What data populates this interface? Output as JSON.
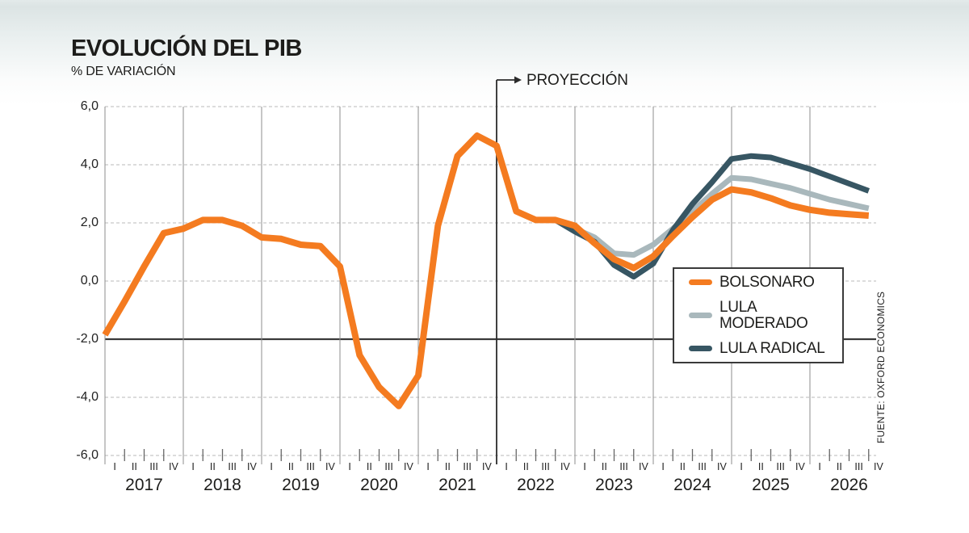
{
  "header": {
    "title": "EVOLUCIÓN DEL PIB",
    "subtitle": "% DE VARIACIÓN"
  },
  "source": "FUENTE: OXFORD ECONOMICS",
  "legend": {
    "items": [
      {
        "id": "bolsonaro",
        "label": "BOLSONARO",
        "color": "#F47B20"
      },
      {
        "id": "lula-moderado",
        "label": "LULA MODERADO",
        "color": "#A9B8BC"
      },
      {
        "id": "lula-radical",
        "label": "LULA RADICAL",
        "color": "#375663"
      }
    ]
  },
  "chart_data": {
    "type": "line",
    "title": "EVOLUCIÓN DEL PIB",
    "ylabel": "% DE VARIACIÓN",
    "ylim": [
      -6,
      6
    ],
    "grid": "dashed-horizontal",
    "legend_position": "box-right-center",
    "y_axis": {
      "solid_value": -2,
      "ticks": [
        {
          "value": 6,
          "label": "6,0"
        },
        {
          "value": 4,
          "label": "4,0"
        },
        {
          "value": 2,
          "label": "2,0"
        },
        {
          "value": 0,
          "label": "0,0"
        },
        {
          "value": -2,
          "label": "-2,0"
        },
        {
          "value": -4,
          "label": "-4,0"
        },
        {
          "value": -6,
          "label": "-6,0"
        }
      ]
    },
    "x_axis": {
      "years": [
        2017,
        2018,
        2019,
        2020,
        2021,
        2022,
        2023,
        2024,
        2025,
        2026
      ],
      "quarter_labels": [
        "I",
        "II",
        "III",
        "IV"
      ]
    },
    "projection": {
      "label": "PROYECCIÓN",
      "at_quarter_index": 20
    },
    "series": [
      {
        "id": "bolsonaro",
        "name": "BOLSONARO",
        "color": "#F47B20",
        "stroke_width": 8,
        "z": 3,
        "start_index": 0,
        "values": [
          -1.85,
          -0.7,
          0.5,
          1.65,
          1.8,
          2.1,
          2.1,
          1.9,
          1.5,
          1.45,
          1.25,
          1.2,
          0.5,
          -2.55,
          -3.65,
          -4.3,
          -3.25,
          1.9,
          4.3,
          5.0,
          4.65,
          2.4,
          2.1,
          2.1,
          1.9,
          1.3,
          0.75,
          0.45,
          0.85,
          1.55,
          2.2,
          2.8,
          3.15,
          3.05,
          2.85,
          2.6,
          2.45,
          2.35,
          2.3,
          2.25
        ]
      },
      {
        "id": "lula-moderado",
        "name": "LULA MODERADO",
        "color": "#A9B8BC",
        "stroke_width": 7,
        "z": 1,
        "start_index": 23,
        "values": [
          2.1,
          1.8,
          1.5,
          0.95,
          0.9,
          1.25,
          1.8,
          2.4,
          3.0,
          3.55,
          3.5,
          3.35,
          3.2,
          3.0,
          2.8,
          2.65,
          2.5
        ]
      },
      {
        "id": "lula-radical",
        "name": "LULA RADICAL",
        "color": "#375663",
        "stroke_width": 7,
        "z": 2,
        "start_index": 23,
        "values": [
          2.1,
          1.7,
          1.35,
          0.55,
          0.15,
          0.6,
          1.75,
          2.65,
          3.4,
          4.2,
          4.3,
          4.25,
          4.05,
          3.85,
          3.6,
          3.35,
          3.1
        ]
      }
    ]
  }
}
